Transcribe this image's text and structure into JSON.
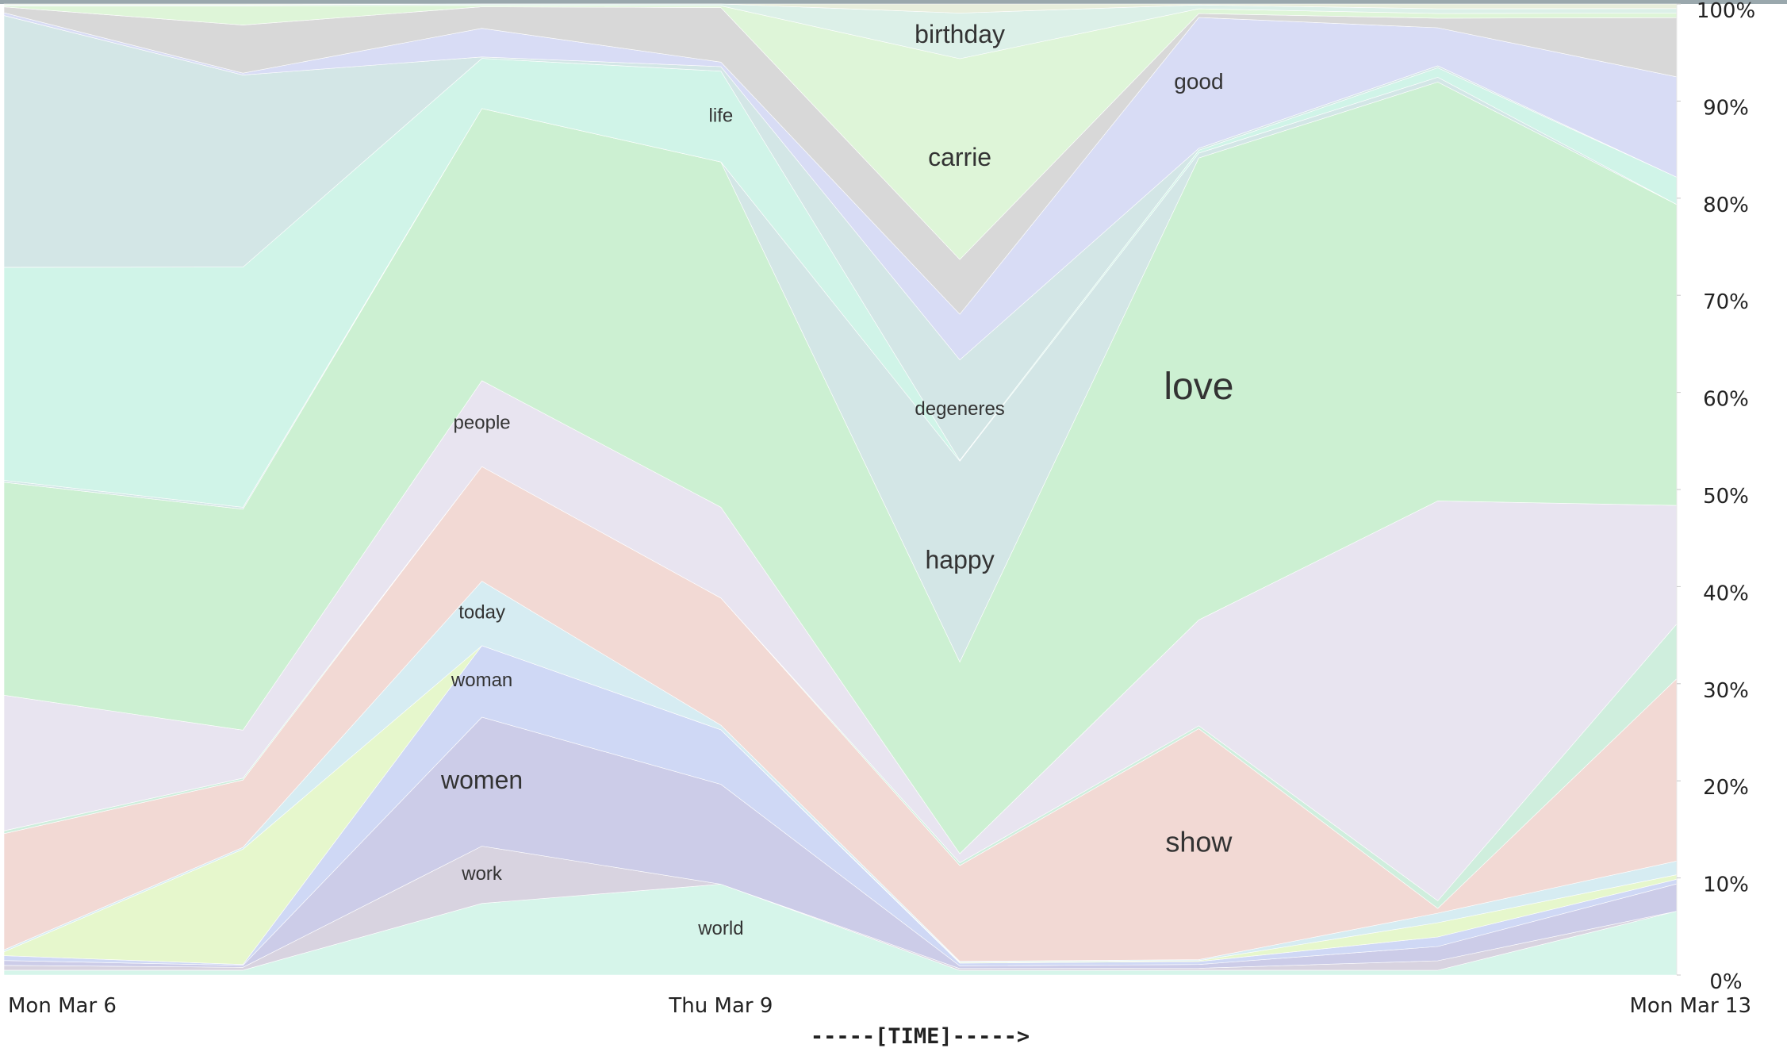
{
  "chart_data": {
    "type": "area",
    "stacked": true,
    "normalized": true,
    "xlabel": "-----[TIME]----->",
    "ylabel": "",
    "title": "",
    "ylim": [
      0,
      100
    ],
    "grid": false,
    "x_tick_labels": [
      "Mon Mar 6",
      "Thu Mar 9",
      "Mon Mar 13"
    ],
    "y_tick_labels": [
      "0%",
      "10%",
      "20%",
      "30%",
      "40%",
      "50%",
      "60%",
      "70%",
      "80%",
      "90%",
      "100%"
    ],
    "y_ticks": [
      0,
      10,
      20,
      30,
      40,
      50,
      60,
      70,
      80,
      90,
      100
    ],
    "x": [
      "Mon Mar 6",
      "Tue Mar 7",
      "Wed Mar 8",
      "Thu Mar 9",
      "Fri Mar 10",
      "Sat Mar 11",
      "Sun Mar 12",
      "Mon Mar 13"
    ],
    "series": [
      {
        "name": "world",
        "color": "#d6f5ea",
        "values": [
          0.5,
          0.5,
          10,
          10,
          0.5,
          0.5,
          0.5,
          7
        ]
      },
      {
        "name": "work",
        "color": "#d8d3e0",
        "values": [
          0.5,
          0.3,
          8,
          0,
          0.2,
          0.2,
          1,
          0
        ]
      },
      {
        "name": "women",
        "color": "#cccce8",
        "values": [
          0.5,
          0.2,
          18,
          11,
          0.3,
          0.4,
          1.5,
          3
        ]
      },
      {
        "name": "woman",
        "color": "#cfd8f5",
        "values": [
          0.5,
          0.1,
          10,
          6,
          0.3,
          0.3,
          1,
          0.5
        ]
      },
      {
        "name": "",
        "color": "#e6f7cc",
        "values": [
          0.4,
          12,
          0,
          0,
          0.1,
          0.1,
          1.5,
          0.5
        ]
      },
      {
        "name": "today",
        "color": "#d6ecf2",
        "values": [
          0.2,
          0.2,
          9,
          0.5,
          0.1,
          0.1,
          1,
          1.5
        ]
      },
      {
        "name": "show",
        "color": "#f2d9d4",
        "values": [
          12,
          7,
          16,
          14,
          10.5,
          24,
          0.5,
          20
        ]
      },
      {
        "name": "",
        "color": "#cfeedd",
        "values": [
          0.3,
          0.2,
          0,
          0,
          0.3,
          0.3,
          0.8,
          6
        ]
      },
      {
        "name": "people",
        "color": "#e8e4f0",
        "values": [
          14,
          5,
          12,
          10,
          1,
          11,
          42,
          13
        ]
      },
      {
        "name": "love",
        "color": "#ccf0d2",
        "values": [
          22,
          23,
          38,
          38,
          21,
          48,
          44,
          33
        ]
      },
      {
        "name": "happy",
        "color": "#d3e6e6",
        "values": [
          0.2,
          0.2,
          0,
          0,
          22,
          0.5,
          0.5,
          0
        ]
      },
      {
        "name": "life",
        "color": "#d0f4e8",
        "values": [
          22,
          25,
          7,
          10,
          0.1,
          0.3,
          1,
          3
        ]
      },
      {
        "name": "degeneres",
        "color": "#d3e6e6",
        "values": [
          26,
          20,
          0.2,
          0.5,
          11,
          0.2,
          0.2,
          0
        ]
      },
      {
        "name": "good",
        "color": "#d8dcf5",
        "values": [
          0.3,
          0.2,
          4,
          0.5,
          5,
          13.6,
          4,
          11
        ]
      },
      {
        "name": "",
        "color": "#d8d8d8",
        "values": [
          0.6,
          5,
          3,
          6,
          6,
          0.4,
          1,
          6.5
        ]
      },
      {
        "name": "carrie",
        "color": "#def5d8",
        "values": [
          0.1,
          2,
          0.2,
          0.2,
          22,
          0.5,
          0.5,
          0.5
        ]
      },
      {
        "name": "birthday",
        "color": "#dcf0e8",
        "values": [
          0.1,
          0.1,
          0.2,
          0.2,
          5,
          0.4,
          0.5,
          0.5
        ]
      },
      {
        "name": "",
        "color": "#e8eedc",
        "values": [
          0.1,
          0.1,
          0,
          0,
          1,
          0.1,
          0.5,
          0.5
        ]
      }
    ],
    "labels": [
      {
        "text": "world",
        "x_index": 3,
        "size": 24
      },
      {
        "text": "work",
        "x_index": 2,
        "size": 24
      },
      {
        "text": "women",
        "x_index": 2,
        "size": 32
      },
      {
        "text": "woman",
        "x_index": 2,
        "size": 24
      },
      {
        "text": "today",
        "x_index": 2,
        "size": 24
      },
      {
        "text": "show",
        "x_index": 5,
        "size": 36
      },
      {
        "text": "people",
        "x_index": 2,
        "size": 24
      },
      {
        "text": "love",
        "x_index": 5,
        "size": 48
      },
      {
        "text": "happy",
        "x_index": 4,
        "size": 32
      },
      {
        "text": "life",
        "x_index": 3,
        "size": 24
      },
      {
        "text": "degeneres",
        "x_index": 4,
        "size": 24
      },
      {
        "text": "good",
        "x_index": 5,
        "size": 28
      },
      {
        "text": "carrie",
        "x_index": 4,
        "size": 32
      },
      {
        "text": "birthday",
        "x_index": 4,
        "size": 32
      }
    ]
  }
}
